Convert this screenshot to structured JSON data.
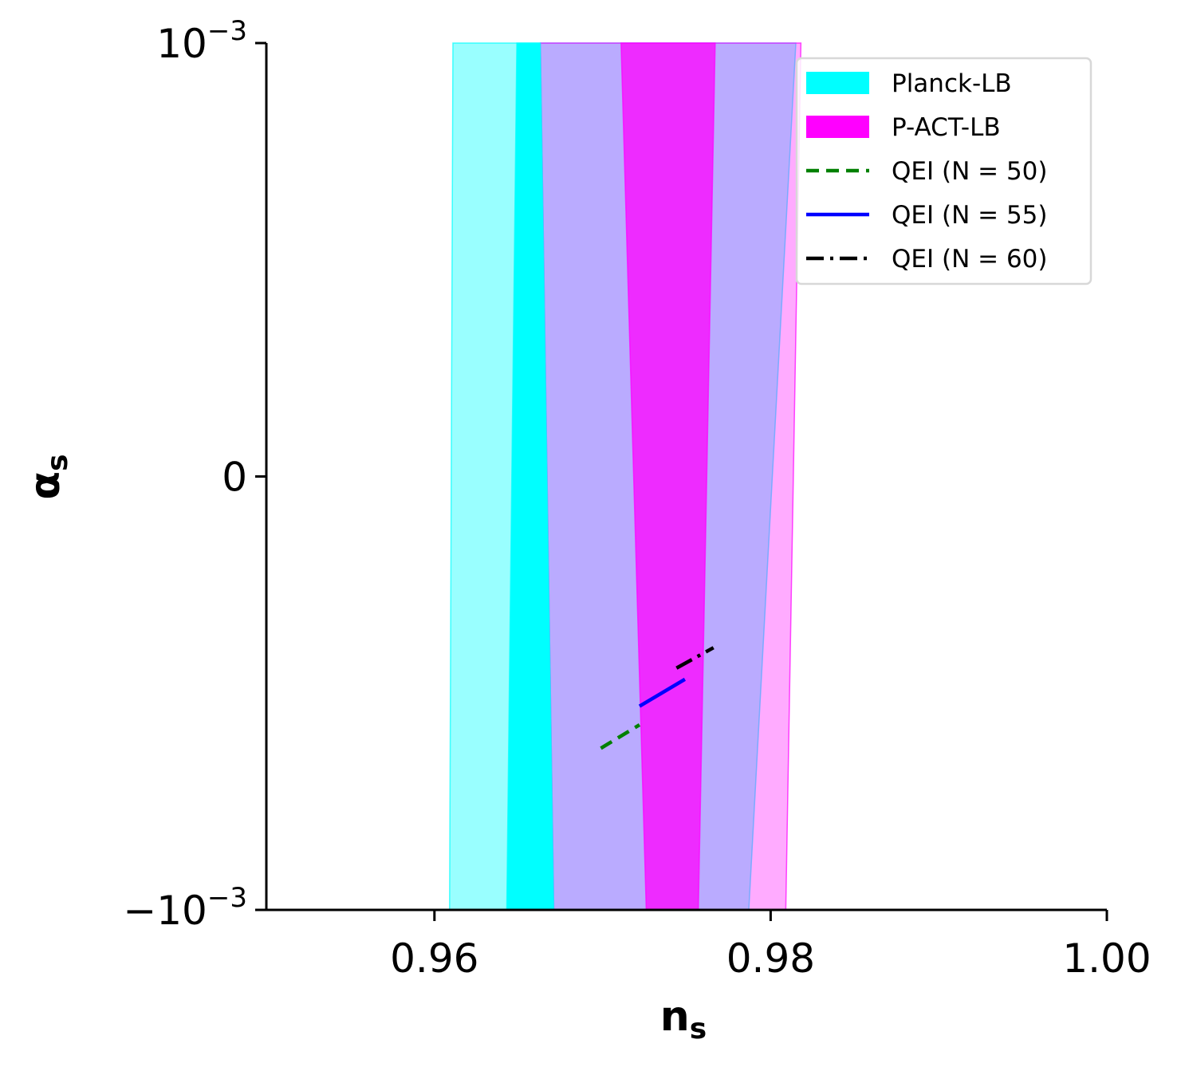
{
  "chart_data": {
    "type": "area",
    "xlabel": {
      "main": "n",
      "sub": "s"
    },
    "ylabel": {
      "main": "α",
      "sub": "s"
    },
    "xlim": [
      0.95,
      1.0
    ],
    "ylim": [
      -0.001,
      0.001
    ],
    "x_ticks": [
      {
        "value": 0.96,
        "label": "0.96"
      },
      {
        "value": 0.98,
        "label": "0.98"
      },
      {
        "value": 1.0,
        "label": "1.00"
      }
    ],
    "y_ticks": [
      {
        "value": 0.001,
        "base": "10",
        "sign": "",
        "exp": "−3"
      },
      {
        "value": 0.0,
        "base": "0",
        "sign": "",
        "exp": ""
      },
      {
        "value": -0.001,
        "base": "10",
        "sign": "−",
        "exp": "−3"
      }
    ],
    "grid": false,
    "legend_position": "top-right",
    "regions": [
      {
        "series": "Planck-LB",
        "level": "outer",
        "color": "#00ffff",
        "opacity": 0.4,
        "top": [
          0.9611,
          0.9815
        ],
        "bottom": [
          0.9609,
          0.9787
        ]
      },
      {
        "series": "P-ACT-LB",
        "level": "outer",
        "color": "#ff00ff",
        "opacity": 0.33,
        "top": [
          0.9663,
          0.9818
        ],
        "bottom": [
          0.9671,
          0.9809
        ]
      },
      {
        "series": "Planck-LB",
        "level": "inner",
        "color": "#00ffff",
        "opacity": 1.0,
        "top": [
          0.9649,
          0.9663
        ],
        "bottom": [
          0.9643,
          0.9671
        ]
      },
      {
        "series": "P-ACT-LB",
        "level": "inner",
        "color": "#ff00ff",
        "opacity": 0.75,
        "top": [
          0.9711,
          0.9767
        ],
        "bottom": [
          0.9726,
          0.9757
        ]
      }
    ],
    "series": [
      {
        "name": "Planck-LB",
        "kind": "band",
        "color": "#00ffff"
      },
      {
        "name": "P-ACT-LB",
        "kind": "band",
        "color": "#ff00ff"
      },
      {
        "name": "QEI (N = 50)",
        "kind": "line",
        "color": "#008000",
        "dash": "dashed",
        "points": [
          [
            0.9699,
            -0.000627
          ],
          [
            0.9722,
            -0.000573
          ]
        ]
      },
      {
        "name": "QEI (N = 55)",
        "kind": "line",
        "color": "#0000ff",
        "dash": "solid",
        "points": [
          [
            0.9722,
            -0.00053
          ],
          [
            0.9749,
            -0.000468
          ]
        ]
      },
      {
        "name": "QEI (N = 60)",
        "kind": "line",
        "color": "#000000",
        "dash": "dashdot",
        "points": [
          [
            0.9744,
            -0.000442
          ],
          [
            0.9766,
            -0.000395
          ]
        ]
      }
    ]
  }
}
